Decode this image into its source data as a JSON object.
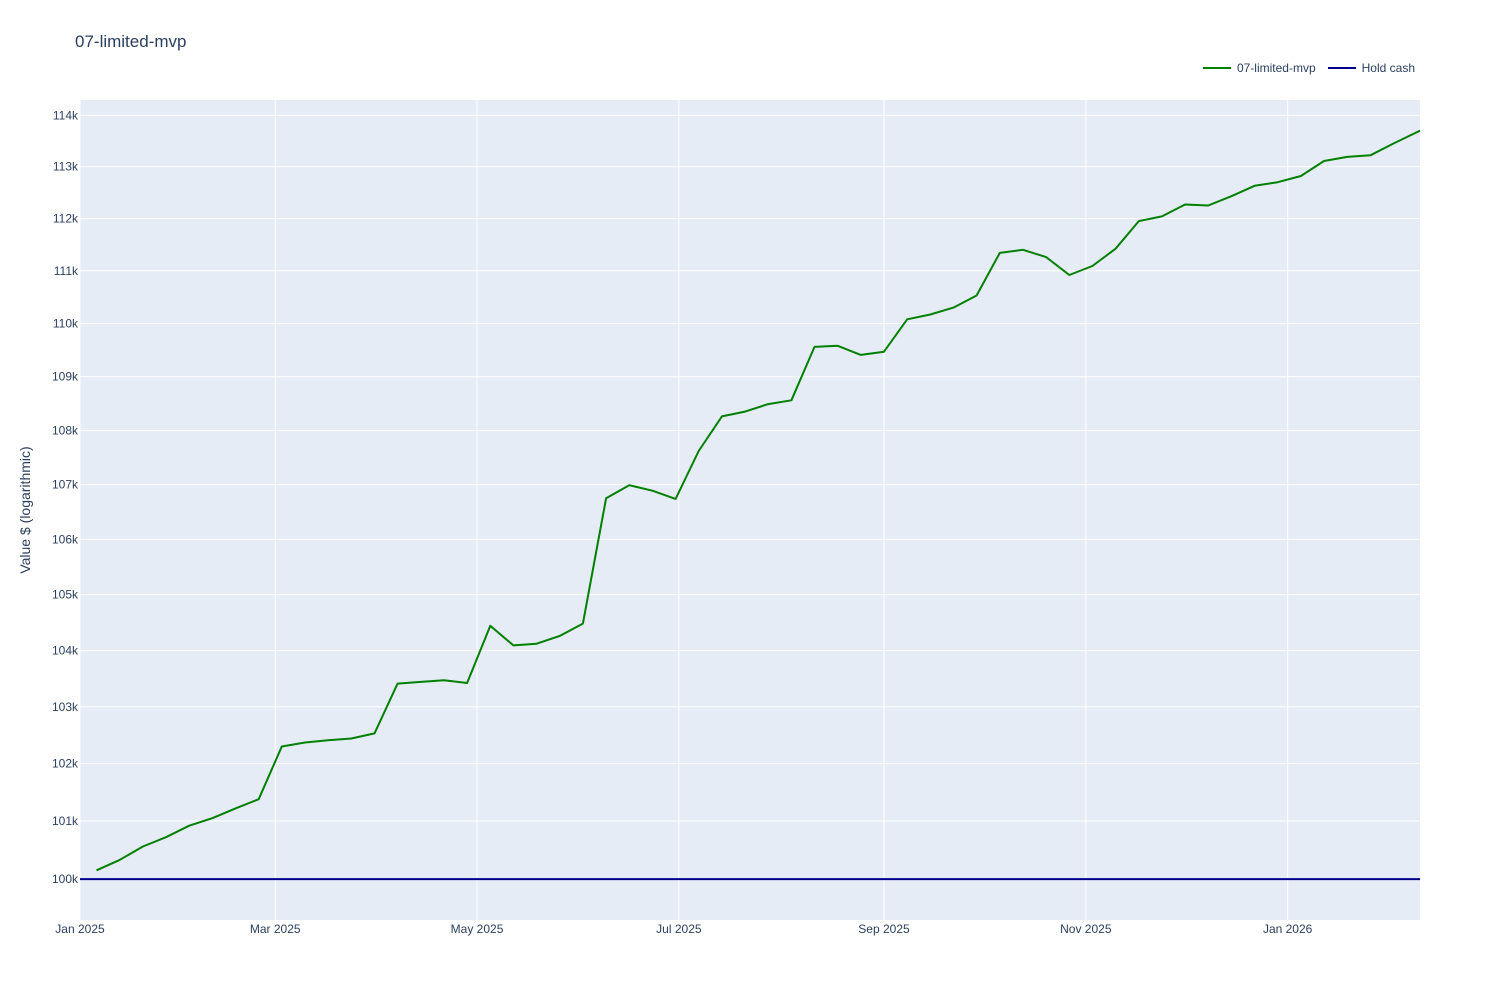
{
  "chart_data": {
    "type": "line",
    "title": "07-limited-mvp",
    "xlabel": "",
    "ylabel": "Value $ (logarithmic)",
    "y_scale": "log",
    "ylim": [
      99300,
      114300
    ],
    "xlim": [
      "2025-01-01",
      "2026-02-10"
    ],
    "grid": true,
    "legend_position": "top-right",
    "x_ticks": [
      {
        "date": "2025-01-01",
        "label": "Jan 2025"
      },
      {
        "date": "2025-03-01",
        "label": "Mar 2025"
      },
      {
        "date": "2025-05-01",
        "label": "May 2025"
      },
      {
        "date": "2025-07-01",
        "label": "Jul 2025"
      },
      {
        "date": "2025-09-01",
        "label": "Sep 2025"
      },
      {
        "date": "2025-11-01",
        "label": "Nov 2025"
      },
      {
        "date": "2026-01-01",
        "label": "Jan 2026"
      }
    ],
    "y_ticks": [
      {
        "value": 100000,
        "label": "100k"
      },
      {
        "value": 101000,
        "label": "101k"
      },
      {
        "value": 102000,
        "label": "102k"
      },
      {
        "value": 103000,
        "label": "103k"
      },
      {
        "value": 104000,
        "label": "104k"
      },
      {
        "value": 105000,
        "label": "105k"
      },
      {
        "value": 106000,
        "label": "106k"
      },
      {
        "value": 107000,
        "label": "107k"
      },
      {
        "value": 108000,
        "label": "108k"
      },
      {
        "value": 109000,
        "label": "109k"
      },
      {
        "value": 110000,
        "label": "110k"
      },
      {
        "value": 111000,
        "label": "111k"
      },
      {
        "value": 112000,
        "label": "112k"
      },
      {
        "value": 113000,
        "label": "113k"
      },
      {
        "value": 114000,
        "label": "114k"
      }
    ],
    "series": [
      {
        "name": "07-limited-mvp",
        "color": "#008000",
        "points": [
          [
            "2025-01-06",
            100150
          ],
          [
            "2025-01-13",
            100330
          ],
          [
            "2025-01-20",
            100560
          ],
          [
            "2025-01-27",
            100720
          ],
          [
            "2025-02-03",
            100920
          ],
          [
            "2025-02-10",
            101050
          ],
          [
            "2025-02-17",
            101220
          ],
          [
            "2025-02-24",
            101380
          ],
          [
            "2025-03-03",
            102300
          ],
          [
            "2025-03-10",
            102370
          ],
          [
            "2025-03-17",
            102410
          ],
          [
            "2025-03-24",
            102440
          ],
          [
            "2025-03-31",
            102530
          ],
          [
            "2025-04-07",
            103410
          ],
          [
            "2025-04-14",
            103440
          ],
          [
            "2025-04-21",
            103470
          ],
          [
            "2025-04-28",
            103420
          ],
          [
            "2025-05-05",
            104440
          ],
          [
            "2025-05-12",
            104090
          ],
          [
            "2025-05-19",
            104120
          ],
          [
            "2025-05-26",
            104260
          ],
          [
            "2025-06-02",
            104480
          ],
          [
            "2025-06-09",
            106750
          ],
          [
            "2025-06-16",
            106990
          ],
          [
            "2025-06-23",
            106890
          ],
          [
            "2025-06-30",
            106740
          ],
          [
            "2025-07-07",
            107620
          ],
          [
            "2025-07-14",
            108260
          ],
          [
            "2025-07-21",
            108350
          ],
          [
            "2025-07-28",
            108490
          ],
          [
            "2025-08-04",
            108560
          ],
          [
            "2025-08-11",
            109560
          ],
          [
            "2025-08-18",
            109580
          ],
          [
            "2025-08-25",
            109410
          ],
          [
            "2025-09-01",
            109470
          ],
          [
            "2025-09-08",
            110080
          ],
          [
            "2025-09-15",
            110170
          ],
          [
            "2025-09-22",
            110300
          ],
          [
            "2025-09-29",
            110530
          ],
          [
            "2025-10-06",
            111340
          ],
          [
            "2025-10-13",
            111400
          ],
          [
            "2025-10-20",
            111260
          ],
          [
            "2025-10-27",
            110920
          ],
          [
            "2025-11-03",
            111090
          ],
          [
            "2025-11-10",
            111420
          ],
          [
            "2025-11-17",
            111950
          ],
          [
            "2025-11-24",
            112040
          ],
          [
            "2025-12-01",
            112270
          ],
          [
            "2025-12-08",
            112250
          ],
          [
            "2025-12-15",
            112430
          ],
          [
            "2025-12-22",
            112630
          ],
          [
            "2025-12-29",
            112700
          ],
          [
            "2026-01-05",
            112820
          ],
          [
            "2026-01-12",
            113110
          ],
          [
            "2026-01-19",
            113190
          ],
          [
            "2026-01-26",
            113220
          ],
          [
            "2026-02-02",
            113450
          ],
          [
            "2026-02-10",
            113700
          ]
        ]
      },
      {
        "name": "Hold cash",
        "color": "#00008b",
        "points": [
          [
            "2025-01-01",
            100000
          ],
          [
            "2026-02-10",
            100000
          ]
        ]
      }
    ]
  },
  "colors": {
    "plot_background": "#e5ecf6",
    "grid": "#ffffff",
    "text": "#2a3f5f"
  }
}
